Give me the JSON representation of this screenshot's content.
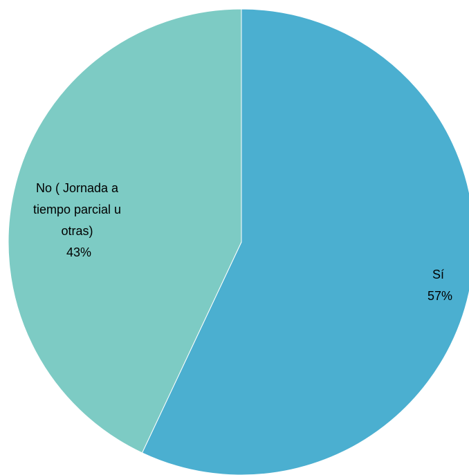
{
  "chart_data": {
    "type": "pie",
    "slices": [
      {
        "label": "Sí",
        "value": 57,
        "percent_label": "57%",
        "color": "#4bafd0"
      },
      {
        "label": "No ( Jornada a tiempo parcial u otras)",
        "value": 43,
        "percent_label": "43%",
        "color": "#7dcbc4"
      }
    ],
    "start": "12 o'clock",
    "direction": "clockwise",
    "legend": "none",
    "data_labels": "on slices, category name and percentage"
  }
}
